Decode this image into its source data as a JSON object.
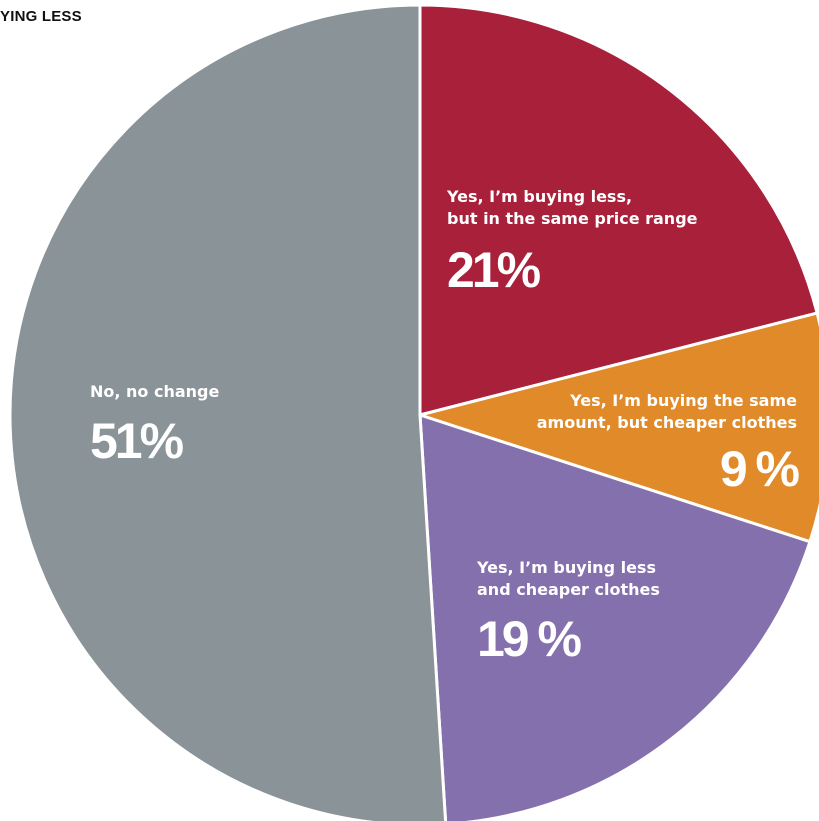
{
  "chart_data": {
    "type": "pie",
    "title": "YING LESS",
    "slices": [
      {
        "label_lines": [
          "Yes, I’m buying less,",
          "but in the same price range"
        ],
        "value": 21,
        "value_label": "21%",
        "color": "#a8203a"
      },
      {
        "label_lines": [
          "Yes, I’m buying the same",
          "amount, but cheaper clothes"
        ],
        "value": 9,
        "value_label": "9 %",
        "color": "#e08a2a"
      },
      {
        "label_lines": [
          "Yes, I’m buying less",
          "and cheaper clothes"
        ],
        "value": 19,
        "value_label": "19 %",
        "color": "#8570ae"
      },
      {
        "label_lines": [
          "No, no change"
        ],
        "value": 51,
        "value_label": "51%",
        "color": "#8a9398"
      }
    ]
  }
}
